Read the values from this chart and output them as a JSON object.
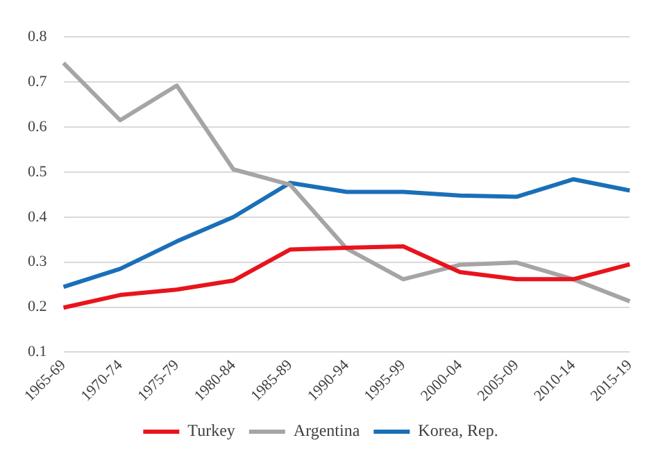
{
  "chart_data": {
    "type": "line",
    "categories": [
      "1965-69",
      "1970-74",
      "1975-79",
      "1980-84",
      "1985-89",
      "1990-94",
      "1995-99",
      "2000-04",
      "2005-09",
      "2010-14",
      "2015-19"
    ],
    "series": [
      {
        "name": "Turkey",
        "color": "#e8141c",
        "values": [
          0.199,
          0.227,
          0.239,
          0.259,
          0.328,
          0.332,
          0.335,
          0.278,
          0.262,
          0.262,
          0.295
        ]
      },
      {
        "name": "Argentina",
        "color": "#a5a5a5",
        "values": [
          0.742,
          0.615,
          0.692,
          0.506,
          0.472,
          0.33,
          0.262,
          0.294,
          0.299,
          0.262,
          0.213
        ]
      },
      {
        "name": "Korea, Rep.",
        "color": "#1a6fb8",
        "values": [
          0.245,
          0.285,
          0.346,
          0.4,
          0.476,
          0.456,
          0.456,
          0.448,
          0.445,
          0.484,
          0.459
        ]
      }
    ],
    "ylim": [
      0.1,
      0.8
    ],
    "yticks": [
      0.1,
      0.2,
      0.3,
      0.4,
      0.5,
      0.6,
      0.7,
      0.8
    ],
    "grid": "y",
    "legend": "bottom",
    "marker": "none",
    "line_style": "solid"
  }
}
